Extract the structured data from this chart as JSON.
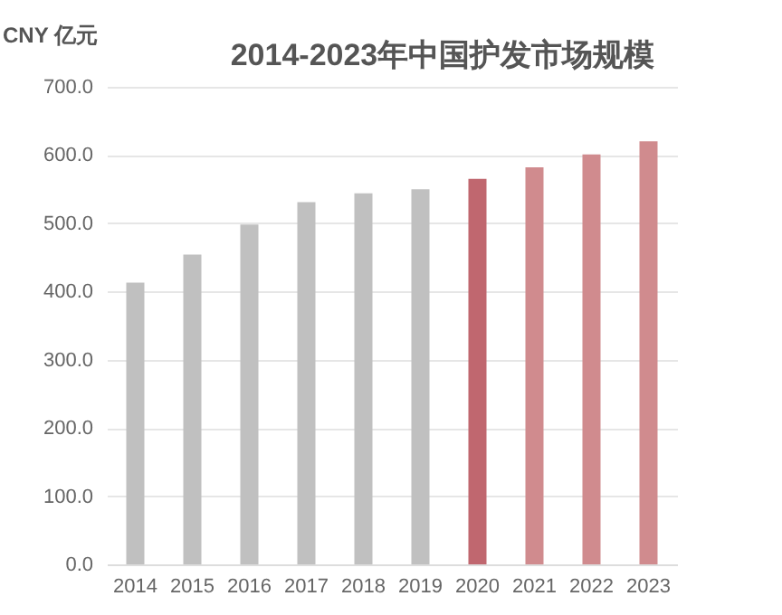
{
  "chart_data": {
    "type": "bar",
    "title": "2014-2023年中国护发市场规模",
    "ylabel": "CNY 亿元",
    "categories": [
      "2014",
      "2015",
      "2016",
      "2017",
      "2018",
      "2019",
      "2020",
      "2021",
      "2022",
      "2023"
    ],
    "values": [
      413,
      454,
      498,
      531,
      544,
      550,
      565,
      582,
      601,
      620
    ],
    "colors": [
      "#c0c0c0",
      "#c0c0c0",
      "#c0c0c0",
      "#c0c0c0",
      "#c0c0c0",
      "#c0c0c0",
      "#c0676f",
      "#d08b8e",
      "#d08b8e",
      "#d08b8e"
    ],
    "ylim": [
      0,
      700
    ],
    "yticks": [
      {
        "value": 0,
        "label": "0.0"
      },
      {
        "value": 100,
        "label": "100.0"
      },
      {
        "value": 200,
        "label": "200.0"
      },
      {
        "value": 300,
        "label": "300.0"
      },
      {
        "value": 400,
        "label": "400.0"
      },
      {
        "value": 500,
        "label": "500.0"
      },
      {
        "value": 600,
        "label": "600.0"
      },
      {
        "value": 700,
        "label": "700.0"
      }
    ],
    "grid": "y"
  }
}
